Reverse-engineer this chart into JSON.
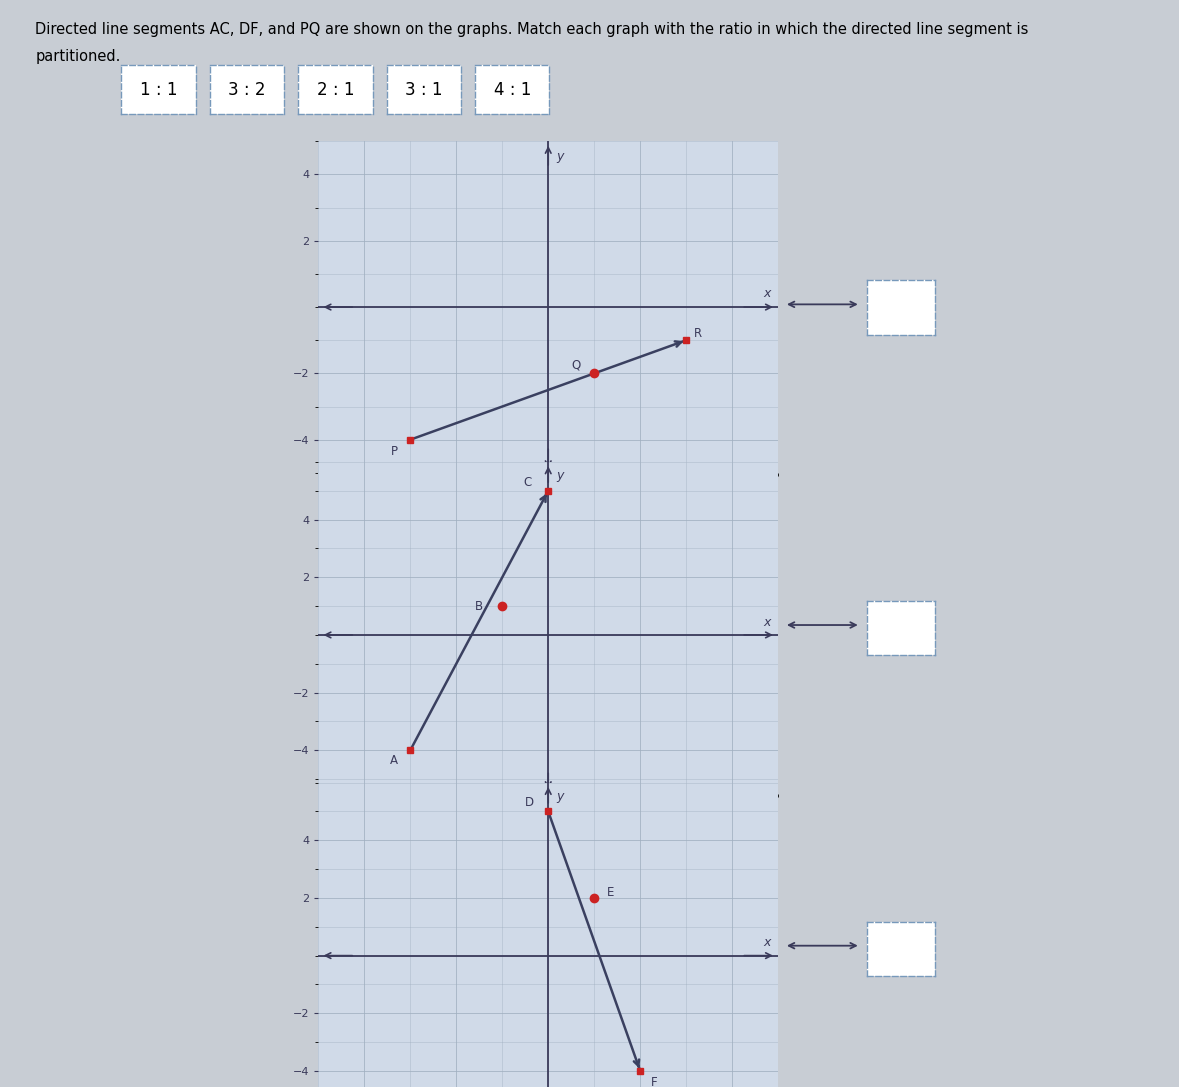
{
  "title_line1": "Directed line segments AC, DF, and PQ are shown on the graphs. Match each graph with the ratio in which the directed line segment is",
  "title_line2": "partitioned.",
  "ratios": [
    "1 : 1",
    "3 : 2",
    "2 : 1",
    "3 : 1",
    "4 : 1"
  ],
  "bg_color": "#c8cdd4",
  "box_bg": "#d0dae8",
  "grid_color": "#a0afc0",
  "axis_color": "#3a3a5a",
  "line_color": "#3a4060",
  "point_color": "#cc2222",
  "graphs": [
    {
      "name": "PQ",
      "xlim": [
        -5,
        5
      ],
      "ylim": [
        -5,
        5
      ],
      "xticks": [
        -4,
        -2,
        2,
        4
      ],
      "yticks": [
        -4,
        -2,
        2,
        4
      ],
      "points": {
        "P": [
          -3,
          -4
        ],
        "Q": [
          1,
          -2
        ],
        "R": [
          3,
          -1
        ]
      },
      "line_start": "P",
      "line_end": "R",
      "partition_point": "Q",
      "label_offsets": {
        "P": [
          -0.35,
          -0.35
        ],
        "Q": [
          -0.4,
          0.25
        ],
        "R": [
          0.25,
          0.2
        ]
      }
    },
    {
      "name": "AC",
      "xlim": [
        -5,
        5
      ],
      "ylim": [
        -5.5,
        6
      ],
      "xticks": [
        -4,
        -2,
        2,
        4
      ],
      "yticks": [
        -4,
        -2,
        2,
        4
      ],
      "points": {
        "A": [
          -3,
          -4
        ],
        "B": [
          -1,
          1
        ],
        "C": [
          0,
          5
        ]
      },
      "line_start": "A",
      "line_end": "C",
      "partition_point": "B",
      "label_offsets": {
        "A": [
          -0.35,
          -0.35
        ],
        "B": [
          -0.5,
          0.0
        ],
        "C": [
          -0.45,
          0.3
        ]
      }
    },
    {
      "name": "DF",
      "xlim": [
        -5,
        5
      ],
      "ylim": [
        -5.5,
        6
      ],
      "xticks": [
        -4,
        -2,
        2,
        4
      ],
      "yticks": [
        -4,
        -2,
        2,
        4
      ],
      "points": {
        "D": [
          0,
          5
        ],
        "E": [
          1,
          2
        ],
        "F": [
          2,
          -4
        ]
      },
      "line_start": "D",
      "line_end": "F",
      "partition_point": "E",
      "label_offsets": {
        "D": [
          -0.4,
          0.3
        ],
        "E": [
          0.35,
          0.2
        ],
        "F": [
          0.3,
          -0.4
        ]
      }
    }
  ]
}
